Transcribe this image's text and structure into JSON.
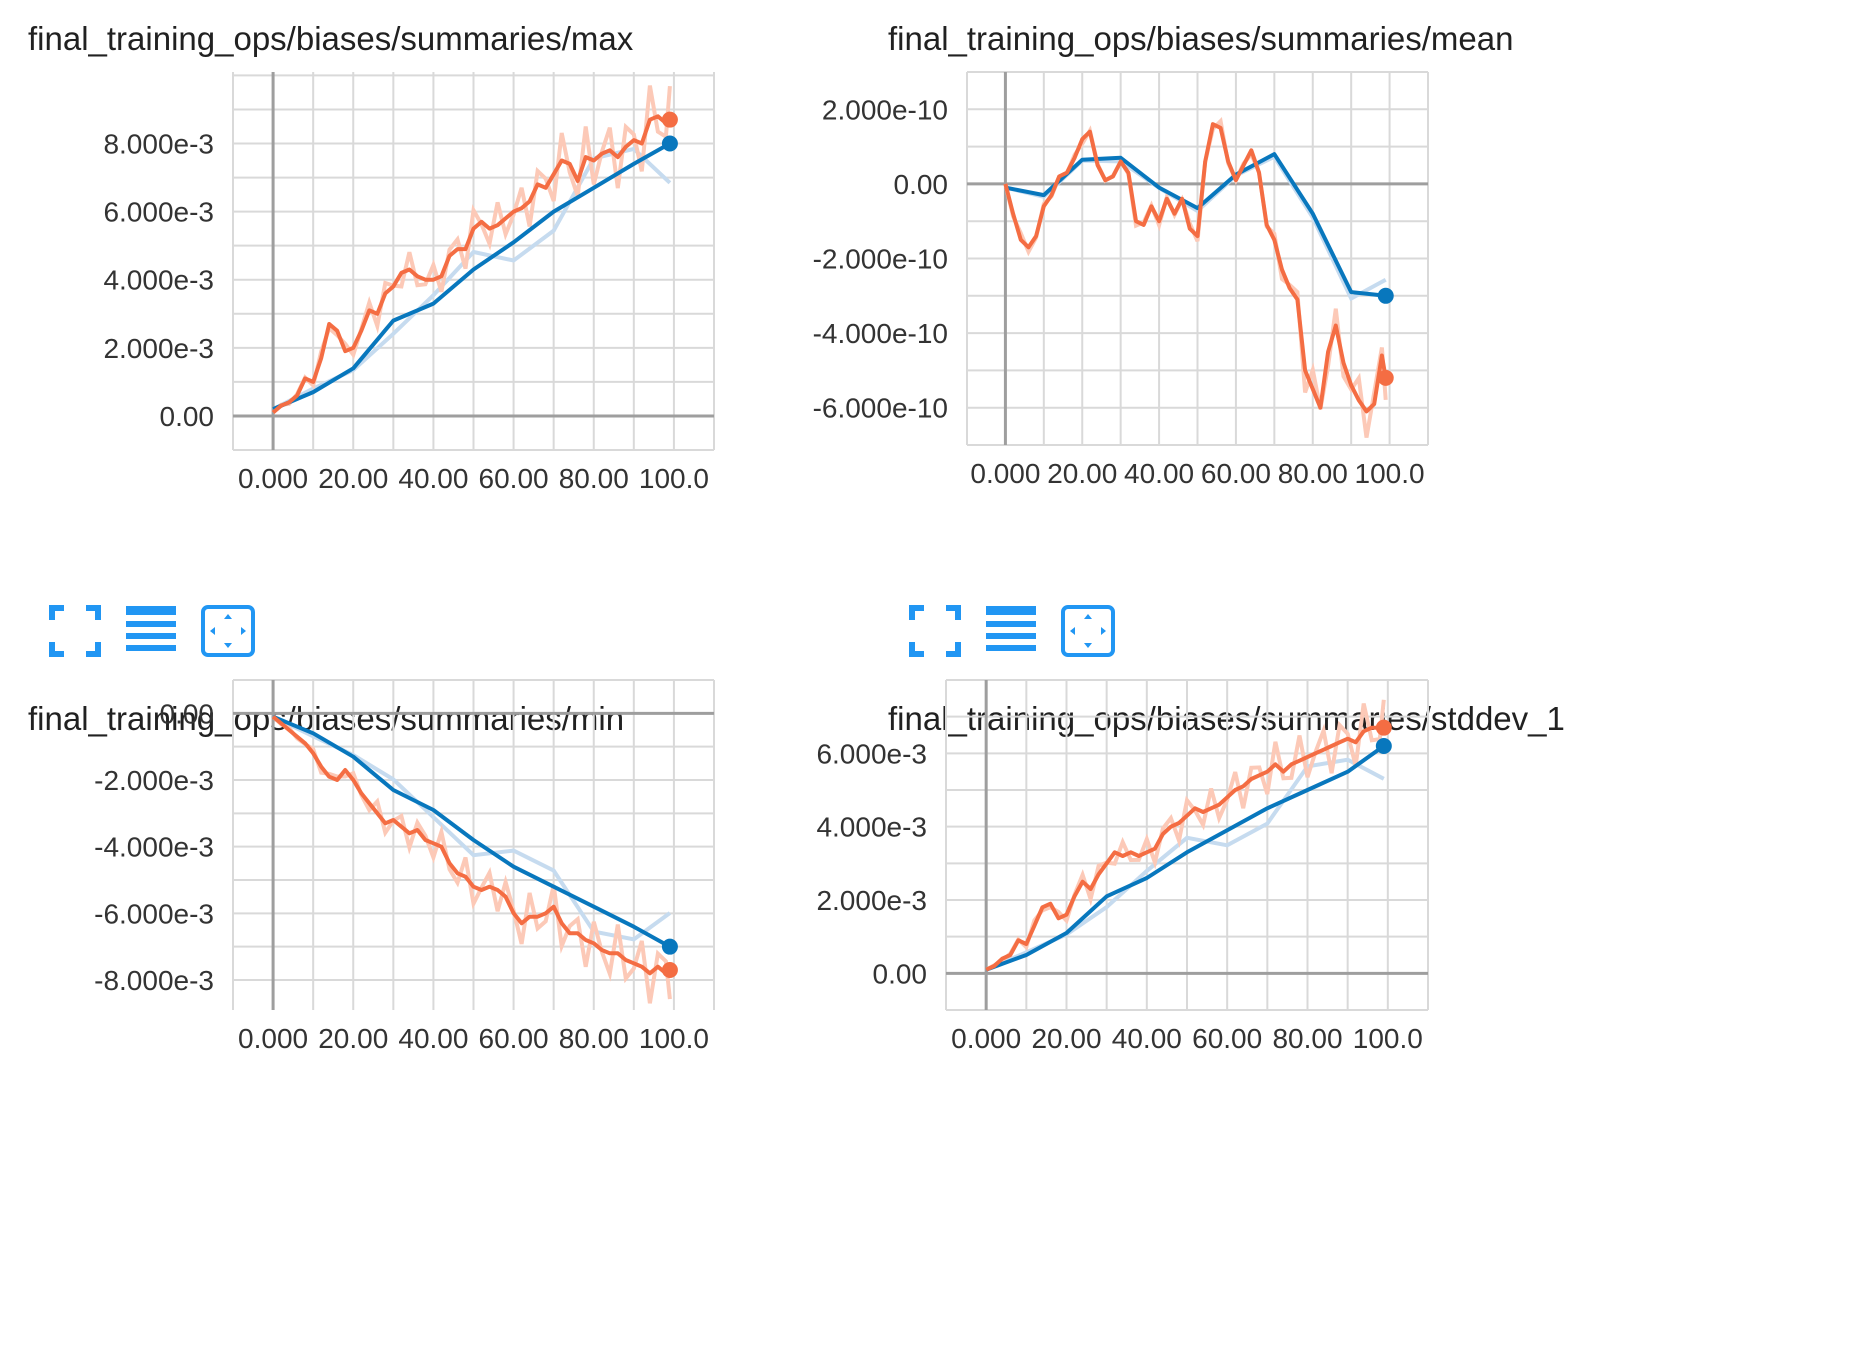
{
  "colors": {
    "raw_blue": "#c6dbef",
    "smooth_blue": "#0877bd",
    "raw_orange": "#fcc9b7",
    "smooth_orange": "#f46d43",
    "grid": "#d9d9d9",
    "axis": "#9e9e9e",
    "toolbar": "#2196f3"
  },
  "toolbar_icons": [
    "fullscreen-icon",
    "list-icon",
    "fit-domain-icon"
  ],
  "chart_data": [
    {
      "type": "line",
      "title": "final_training_ops/biases/summaries/max",
      "xlim": [
        -10,
        110
      ],
      "ylim": [
        -0.001,
        0.0101
      ],
      "xticks": [
        0,
        20,
        40,
        60,
        80,
        100
      ],
      "xtick_labels": [
        "0.000",
        "20.00",
        "40.00",
        "60.00",
        "80.00",
        "100.0"
      ],
      "yticks": [
        0,
        0.002,
        0.004,
        0.006,
        0.008
      ],
      "ytick_labels": [
        "0.00",
        "2.000e-3",
        "4.000e-3",
        "6.000e-3",
        "8.000e-3"
      ],
      "series": [
        {
          "x": [
            0,
            10,
            20,
            30,
            40,
            50,
            60,
            70,
            80,
            90,
            99
          ],
          "y": [
            0.0002,
            0.0007,
            0.0014,
            0.0028,
            0.0033,
            0.0043,
            0.0051,
            0.006,
            0.0067,
            0.0074,
            0.008
          ]
        },
        {
          "x": [
            0,
            2,
            4,
            6,
            8,
            10,
            12,
            14,
            16,
            18,
            20,
            22,
            24,
            26,
            28,
            30,
            32,
            34,
            36,
            38,
            40,
            42,
            44,
            46,
            48,
            50,
            52,
            54,
            56,
            58,
            60,
            62,
            64,
            66,
            68,
            70,
            72,
            74,
            76,
            78,
            80,
            82,
            84,
            86,
            88,
            90,
            92,
            94,
            96,
            98,
            99
          ],
          "y": [
            0.0001,
            0.0003,
            0.0004,
            0.0006,
            0.0011,
            0.001,
            0.0017,
            0.0027,
            0.0025,
            0.0019,
            0.002,
            0.0025,
            0.0031,
            0.003,
            0.0036,
            0.0038,
            0.0042,
            0.0043,
            0.0041,
            0.004,
            0.004,
            0.0041,
            0.0047,
            0.0049,
            0.0049,
            0.0055,
            0.0057,
            0.0055,
            0.0056,
            0.0058,
            0.006,
            0.0061,
            0.0063,
            0.0068,
            0.0067,
            0.0071,
            0.0075,
            0.0074,
            0.0069,
            0.0076,
            0.0075,
            0.0077,
            0.0078,
            0.0076,
            0.0079,
            0.0081,
            0.008,
            0.0087,
            0.0088,
            0.0086,
            0.0087
          ]
        }
      ]
    },
    {
      "type": "line",
      "title": "final_training_ops/biases/summaries/mean",
      "xlim": [
        -10,
        110
      ],
      "ylim": [
        -7e-10,
        3e-10
      ],
      "xticks": [
        0,
        20,
        40,
        60,
        80,
        100
      ],
      "xtick_labels": [
        "0.000",
        "20.00",
        "40.00",
        "60.00",
        "80.00",
        "100.0"
      ],
      "yticks": [
        -6e-10,
        -4e-10,
        -2e-10,
        0,
        2e-10
      ],
      "ytick_labels": [
        "-6.000e-10",
        "-4.000e-10",
        "-2.000e-10",
        "0.00",
        "2.000e-10"
      ],
      "series": [
        {
          "x": [
            0,
            10,
            20,
            30,
            40,
            50,
            60,
            70,
            80,
            90,
            99
          ],
          "y": [
            -1e-11,
            -3e-11,
            6.5e-11,
            7e-11,
            -1e-11,
            -6.5e-11,
            2.5e-11,
            8e-11,
            -8e-11,
            -2.9e-10,
            -3e-10
          ]
        },
        {
          "x": [
            0,
            2,
            4,
            6,
            8,
            10,
            12,
            14,
            16,
            18,
            20,
            22,
            24,
            26,
            28,
            30,
            32,
            34,
            36,
            38,
            40,
            42,
            44,
            46,
            48,
            50,
            52,
            54,
            56,
            58,
            60,
            62,
            64,
            66,
            68,
            70,
            72,
            74,
            76,
            78,
            80,
            82,
            84,
            86,
            88,
            90,
            92,
            94,
            96,
            98,
            99
          ],
          "y": [
            0,
            -8e-11,
            -1.5e-10,
            -1.7e-10,
            -1.4e-10,
            -6e-11,
            -3e-11,
            2e-11,
            3e-11,
            7e-11,
            1.2e-10,
            1.4e-10,
            5e-11,
            1e-11,
            2e-11,
            6e-11,
            3e-11,
            -1e-10,
            -1.1e-10,
            -6e-11,
            -1e-10,
            -4e-11,
            -8e-11,
            -4e-11,
            -1.2e-10,
            -1.4e-10,
            6e-11,
            1.6e-10,
            1.5e-10,
            6e-11,
            1e-11,
            5e-11,
            9e-11,
            3e-11,
            -1.1e-10,
            -1.5e-10,
            -2.3e-10,
            -2.8e-10,
            -3.1e-10,
            -5e-10,
            -5.5e-10,
            -6e-10,
            -4.5e-10,
            -3.8e-10,
            -4.8e-10,
            -5.4e-10,
            -5.8e-10,
            -6.1e-10,
            -5.9e-10,
            -4.6e-10,
            -5.2e-10
          ]
        }
      ]
    },
    {
      "type": "line",
      "title": "final_training_ops/biases/summaries/min",
      "xlim": [
        -10,
        110
      ],
      "ylim": [
        -0.0089,
        0.001
      ],
      "xticks": [
        0,
        20,
        40,
        60,
        80,
        100
      ],
      "xtick_labels": [
        "0.000",
        "20.00",
        "40.00",
        "60.00",
        "80.00",
        "100.0"
      ],
      "yticks": [
        -0.008,
        -0.006,
        -0.004,
        -0.002,
        0
      ],
      "ytick_labels": [
        "-8.000e-3",
        "-6.000e-3",
        "-4.000e-3",
        "-2.000e-3",
        "0.00"
      ],
      "series": [
        {
          "x": [
            0,
            10,
            20,
            30,
            40,
            50,
            60,
            70,
            80,
            90,
            99
          ],
          "y": [
            -0.0001,
            -0.0006,
            -0.0013,
            -0.0023,
            -0.0029,
            -0.0038,
            -0.0046,
            -0.0052,
            -0.0058,
            -0.0064,
            -0.007
          ]
        },
        {
          "x": [
            0,
            2,
            4,
            6,
            8,
            10,
            12,
            14,
            16,
            18,
            20,
            22,
            24,
            26,
            28,
            30,
            32,
            34,
            36,
            38,
            40,
            42,
            44,
            46,
            48,
            50,
            52,
            54,
            56,
            58,
            60,
            62,
            64,
            66,
            68,
            70,
            72,
            74,
            76,
            78,
            80,
            82,
            84,
            86,
            88,
            90,
            92,
            94,
            96,
            98,
            99
          ],
          "y": [
            -0.0001,
            -0.0003,
            -0.0005,
            -0.0007,
            -0.0009,
            -0.0012,
            -0.0016,
            -0.0019,
            -0.002,
            -0.0017,
            -0.002,
            -0.0024,
            -0.0027,
            -0.003,
            -0.0033,
            -0.0032,
            -0.0034,
            -0.0036,
            -0.0035,
            -0.0038,
            -0.0039,
            -0.004,
            -0.0045,
            -0.0048,
            -0.0049,
            -0.0052,
            -0.0053,
            -0.0052,
            -0.0053,
            -0.0055,
            -0.006,
            -0.0063,
            -0.0061,
            -0.0061,
            -0.006,
            -0.0058,
            -0.0063,
            -0.0066,
            -0.0066,
            -0.0068,
            -0.0069,
            -0.0071,
            -0.0072,
            -0.0072,
            -0.0074,
            -0.0075,
            -0.0076,
            -0.0078,
            -0.0076,
            -0.0078,
            -0.0077
          ]
        }
      ]
    },
    {
      "type": "line",
      "title": "final_training_ops/biases/summaries/stddev_1",
      "xlim": [
        -10,
        110
      ],
      "ylim": [
        -0.001,
        0.008
      ],
      "xticks": [
        0,
        20,
        40,
        60,
        80,
        100
      ],
      "xtick_labels": [
        "0.000",
        "20.00",
        "40.00",
        "60.00",
        "80.00",
        "100.0"
      ],
      "yticks": [
        0,
        0.002,
        0.004,
        0.006
      ],
      "ytick_labels": [
        "0.00",
        "2.000e-3",
        "4.000e-3",
        "6.000e-3"
      ],
      "series": [
        {
          "x": [
            0,
            10,
            20,
            30,
            40,
            50,
            60,
            70,
            80,
            90,
            99
          ],
          "y": [
            0.0001,
            0.0005,
            0.0011,
            0.0021,
            0.0026,
            0.0033,
            0.0039,
            0.0045,
            0.005,
            0.0055,
            0.0062
          ]
        },
        {
          "x": [
            0,
            2,
            4,
            6,
            8,
            10,
            12,
            14,
            16,
            18,
            20,
            22,
            24,
            26,
            28,
            30,
            32,
            34,
            36,
            38,
            40,
            42,
            44,
            46,
            48,
            50,
            52,
            54,
            56,
            58,
            60,
            62,
            64,
            66,
            68,
            70,
            72,
            74,
            76,
            78,
            80,
            82,
            84,
            86,
            88,
            90,
            92,
            94,
            96,
            98,
            99
          ],
          "y": [
            0.0001,
            0.0002,
            0.0004,
            0.0005,
            0.0009,
            0.0008,
            0.0013,
            0.0018,
            0.0019,
            0.0015,
            0.0016,
            0.0021,
            0.0025,
            0.0023,
            0.0027,
            0.003,
            0.0033,
            0.0032,
            0.0033,
            0.0032,
            0.0033,
            0.0034,
            0.0038,
            0.004,
            0.0041,
            0.0043,
            0.0045,
            0.0044,
            0.0045,
            0.0046,
            0.0048,
            0.005,
            0.0051,
            0.0053,
            0.0054,
            0.0055,
            0.0057,
            0.0055,
            0.0057,
            0.0058,
            0.0059,
            0.006,
            0.0061,
            0.0062,
            0.0063,
            0.0064,
            0.0063,
            0.0066,
            0.0067,
            0.0067,
            0.0067
          ]
        }
      ]
    }
  ]
}
